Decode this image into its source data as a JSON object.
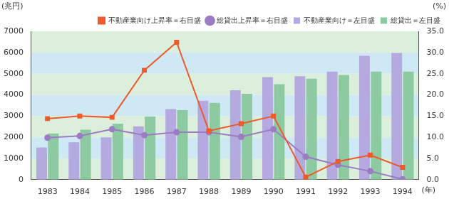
{
  "chart_data": {
    "type": "bar",
    "y_label": "(兆円)",
    "y2_label": "(%)",
    "x_label": "(年)",
    "categories": [
      "1983",
      "1984",
      "1985",
      "1986",
      "1987",
      "1988",
      "1989",
      "1990",
      "1991",
      "1992",
      "1993",
      "1994"
    ],
    "series": [
      {
        "name": "不動産業向け＝左目盛",
        "type": "bar",
        "color": "#b4aadf",
        "values": [
          1520,
          1760,
          2000,
          2520,
          3330,
          3720,
          4220,
          4840,
          4880,
          5100,
          5840,
          5980
        ]
      },
      {
        "name": "総貸出＝左目盛",
        "type": "bar",
        "color": "#8dc9a1",
        "values": [
          2180,
          2360,
          2640,
          2980,
          3280,
          3620,
          4050,
          4500,
          4760,
          4940,
          5100,
          5100
        ]
      },
      {
        "name": "不動産業向け上昇率＝右目盛",
        "type": "line",
        "axis": "y2",
        "color": "#ef5a2c",
        "marker": "square",
        "values": [
          14.4,
          15.0,
          14.7,
          25.8,
          32.4,
          11.5,
          13.2,
          15.0,
          0.6,
          4.3,
          5.8,
          2.9
        ]
      },
      {
        "name": "総貸出上昇率＝右目盛",
        "type": "line",
        "axis": "y2",
        "color": "#9b7cc4",
        "marker": "circle",
        "values": [
          9.9,
          10.3,
          11.9,
          10.5,
          11.2,
          11.2,
          10.1,
          11.9,
          5.4,
          3.5,
          2.0,
          0.1
        ]
      }
    ],
    "ylim": [
      0,
      7000
    ],
    "yticks": [
      0,
      1000,
      2000,
      3000,
      4000,
      5000,
      6000,
      7000
    ],
    "y2lim": [
      0,
      35
    ],
    "y2ticks": [
      {
        "value": 0,
        "label": "0.0"
      },
      {
        "value": 5,
        "label": "5.0"
      },
      {
        "value": 10,
        "label": "10.0"
      },
      {
        "value": 15,
        "label": "15.0"
      },
      {
        "value": 20,
        "label": "20.0"
      },
      {
        "value": 25,
        "label": "25.0"
      },
      {
        "value": 30,
        "label": "30.0"
      },
      {
        "value": 35,
        "label": "35.0"
      }
    ],
    "grid": true,
    "legend": "top-right"
  }
}
